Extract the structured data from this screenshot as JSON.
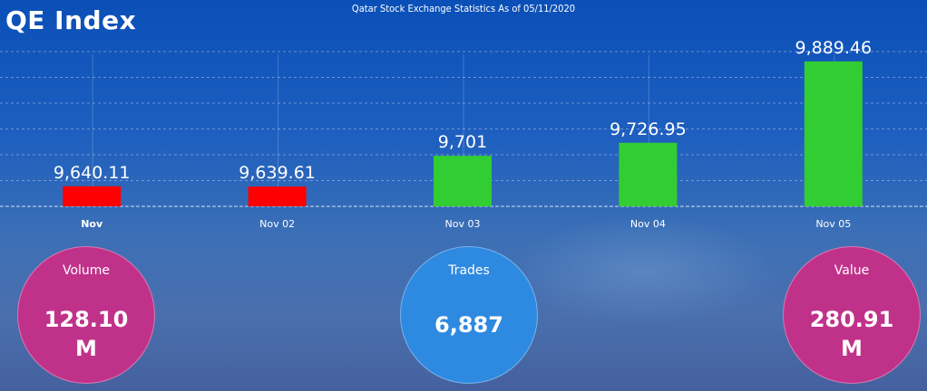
{
  "header": {
    "title": "QE Index",
    "subtitle": "Qatar Stock Exchange Statistics As of 05/11/2020"
  },
  "chart_data": {
    "type": "bar",
    "categories": [
      "Nov",
      "Nov 02",
      "Nov 03",
      "Nov 04",
      "Nov 05"
    ],
    "values": [
      9640.11,
      9639.61,
      9701,
      9726.95,
      9889.46
    ],
    "value_labels": [
      "9,640.11",
      "9,639.61",
      "9,701",
      "9,726.95",
      "9,889.46"
    ],
    "colors": [
      "#ff0000",
      "#ff0000",
      "#32cd32",
      "#32cd32",
      "#32cd32"
    ],
    "title": "",
    "xlabel": "",
    "ylabel": "",
    "ylim": [
      9600,
      9900
    ],
    "grid": true,
    "legend": "none"
  },
  "stats": {
    "volume": {
      "label": "Volume",
      "value": "128.10",
      "unit": "M"
    },
    "trades": {
      "label": "Trades",
      "value": "6,887"
    },
    "value": {
      "label": "Value",
      "value": "280.91",
      "unit": "M"
    }
  },
  "colors": {
    "volume_circle": "#c0328a",
    "trades_circle": "#2e8ae0",
    "value_circle": "#c0328a"
  }
}
